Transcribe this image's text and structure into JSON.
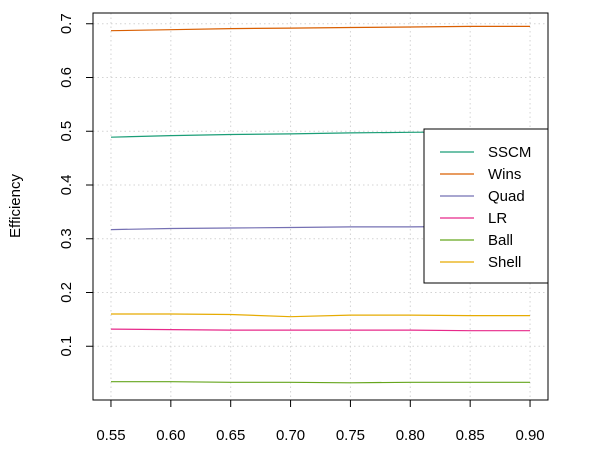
{
  "chart_data": {
    "type": "line",
    "title": "",
    "xlabel": "",
    "ylabel": "Efficiency",
    "x": [
      0.55,
      0.6,
      0.65,
      0.7,
      0.75,
      0.8,
      0.85,
      0.9
    ],
    "xlim": [
      0.535,
      0.915
    ],
    "ylim": [
      0.0,
      0.72
    ],
    "xticks": [
      "0.55",
      "0.60",
      "0.65",
      "0.70",
      "0.75",
      "0.80",
      "0.85",
      "0.90"
    ],
    "yticks": [
      "0.1",
      "0.2",
      "0.3",
      "0.4",
      "0.5",
      "0.6",
      "0.7"
    ],
    "grid": true,
    "legend_position": "right",
    "series": [
      {
        "name": "SSCM",
        "color": "#1b9e77",
        "values": [
          0.489,
          0.492,
          0.494,
          0.495,
          0.497,
          0.498,
          0.499,
          0.5
        ]
      },
      {
        "name": "Wins",
        "color": "#d95f02",
        "values": [
          0.687,
          0.689,
          0.691,
          0.692,
          0.693,
          0.694,
          0.695,
          0.695
        ]
      },
      {
        "name": "Quad",
        "color": "#7570b3",
        "values": [
          0.317,
          0.319,
          0.32,
          0.321,
          0.322,
          0.322,
          0.323,
          0.323
        ]
      },
      {
        "name": "LR",
        "color": "#e7298a",
        "values": [
          0.132,
          0.131,
          0.13,
          0.13,
          0.13,
          0.13,
          0.129,
          0.129
        ]
      },
      {
        "name": "Ball",
        "color": "#66a61e",
        "values": [
          0.034,
          0.034,
          0.033,
          0.033,
          0.032,
          0.033,
          0.033,
          0.033
        ]
      },
      {
        "name": "Shell",
        "color": "#e6ab02",
        "values": [
          0.16,
          0.16,
          0.159,
          0.155,
          0.158,
          0.158,
          0.157,
          0.157
        ]
      }
    ]
  }
}
